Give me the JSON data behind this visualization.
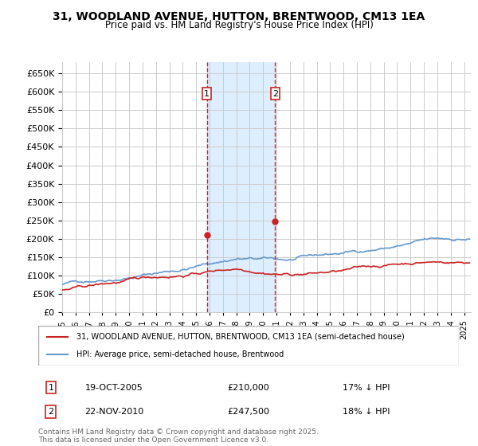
{
  "title": "31, WOODLAND AVENUE, HUTTON, BRENTWOOD, CM13 1EA",
  "subtitle": "Price paid vs. HM Land Registry's House Price Index (HPI)",
  "ylabel_ticks": [
    "£0",
    "£50K",
    "£100K",
    "£150K",
    "£200K",
    "£250K",
    "£300K",
    "£350K",
    "£400K",
    "£450K",
    "£500K",
    "£550K",
    "£600K",
    "£650K"
  ],
  "ytick_values": [
    0,
    50000,
    100000,
    150000,
    200000,
    250000,
    300000,
    350000,
    400000,
    450000,
    500000,
    550000,
    600000,
    650000
  ],
  "xlim_start": 1995.0,
  "xlim_end": 2025.5,
  "ylim_min": 0,
  "ylim_max": 680000,
  "sale1_date": 2005.8,
  "sale1_price": 210000,
  "sale1_label": "1",
  "sale2_date": 2010.9,
  "sale2_price": 247500,
  "sale2_label": "2",
  "hpi_color": "#6699cc",
  "price_color": "#cc2222",
  "shade_color": "#ddeeff",
  "grid_color": "#cccccc",
  "background_color": "#ffffff",
  "legend_label_price": "31, WOODLAND AVENUE, HUTTON, BRENTWOOD, CM13 1EA (semi-detached house)",
  "legend_label_hpi": "HPI: Average price, semi-detached house, Brentwood",
  "footer_text": "Contains HM Land Registry data © Crown copyright and database right 2025.\nThis data is licensed under the Open Government Licence v3.0.",
  "table_rows": [
    {
      "num": "1",
      "date": "19-OCT-2005",
      "price": "£210,000",
      "note": "17% ↓ HPI"
    },
    {
      "num": "2",
      "date": "22-NOV-2010",
      "price": "£247,500",
      "note": "18% ↓ HPI"
    }
  ]
}
